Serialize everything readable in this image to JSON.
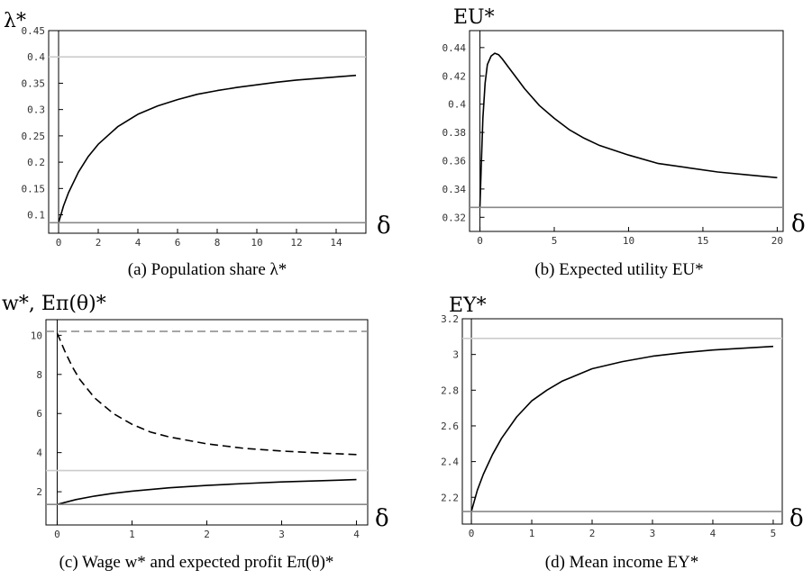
{
  "chart_data": [
    {
      "type": "line",
      "ylabel": "λ*",
      "xlabel": "δ",
      "caption": "(a) Population share λ*",
      "xlim": [
        -0.5,
        15.5
      ],
      "ylim": [
        0.065,
        0.45
      ],
      "xticks": [
        0,
        2,
        4,
        6,
        8,
        10,
        12,
        14
      ],
      "yticks": [
        0.1,
        0.15,
        0.2,
        0.25,
        0.3,
        0.35,
        0.4,
        0.45
      ],
      "ytick_labels": [
        "0.1",
        "0.15",
        "0.2",
        "0.25",
        "0.3",
        "0.35",
        "0.4",
        "0.45"
      ],
      "series": [
        {
          "style": "solid",
          "color": "#000000",
          "x": [
            0,
            0.25,
            0.5,
            1,
            1.5,
            2,
            3,
            4,
            5,
            6,
            7,
            8,
            9,
            10,
            11,
            12,
            13,
            14,
            15
          ],
          "y": [
            0.085,
            0.117,
            0.142,
            0.181,
            0.211,
            0.234,
            0.268,
            0.291,
            0.307,
            0.319,
            0.329,
            0.336,
            0.342,
            0.347,
            0.352,
            0.356,
            0.359,
            0.362,
            0.365
          ]
        },
        {
          "style": "solid",
          "color": "#cccccc",
          "x": [
            -0.5,
            15.5
          ],
          "y": [
            0.4,
            0.4
          ]
        },
        {
          "style": "solid",
          "color": "#888888",
          "x": [
            -0.5,
            15.5
          ],
          "y": [
            0.085,
            0.085
          ]
        }
      ]
    },
    {
      "type": "line",
      "ylabel": "EU*",
      "xlabel": "δ",
      "caption": "(b) Expected utility EU*",
      "xlim": [
        -0.7,
        20.4
      ],
      "ylim": [
        0.31,
        0.452
      ],
      "xticks": [
        0,
        5,
        10,
        15,
        20
      ],
      "yticks": [
        0.32,
        0.34,
        0.36,
        0.38,
        0.4,
        0.42,
        0.44
      ],
      "ytick_labels": [
        "0.32",
        "0.34",
        "0.36",
        "0.38",
        "0.4",
        "0.42",
        "0.44"
      ],
      "series": [
        {
          "style": "solid",
          "color": "#000000",
          "x": [
            0,
            0.1,
            0.2,
            0.35,
            0.5,
            0.75,
            1,
            1.25,
            1.5,
            2,
            2.5,
            3,
            4,
            5,
            6,
            7,
            8,
            10,
            12,
            14,
            16,
            18,
            20
          ],
          "y": [
            0.327,
            0.36,
            0.39,
            0.415,
            0.428,
            0.434,
            0.436,
            0.435,
            0.432,
            0.425,
            0.418,
            0.411,
            0.399,
            0.39,
            0.382,
            0.376,
            0.371,
            0.364,
            0.358,
            0.355,
            0.352,
            0.35,
            0.348
          ]
        },
        {
          "style": "solid",
          "color": "#888888",
          "x": [
            -0.7,
            20.4
          ],
          "y": [
            0.327,
            0.327
          ]
        }
      ]
    },
    {
      "type": "line",
      "ylabel": "w*, Eπ(θ)*",
      "xlabel": "δ",
      "caption": "(c) Wage w* and expected profit Eπ(θ)*",
      "xlim": [
        -0.15,
        4.15
      ],
      "ylim": [
        0.3,
        10.8
      ],
      "xticks": [
        0,
        1,
        2,
        3,
        4
      ],
      "yticks": [
        2,
        4,
        6,
        8,
        10
      ],
      "ytick_labels": [
        "2",
        "4",
        "6",
        "8",
        "10"
      ],
      "series": [
        {
          "style": "dashed",
          "color": "#000000",
          "x": [
            0,
            0.1,
            0.2,
            0.3,
            0.5,
            0.75,
            1,
            1.25,
            1.5,
            2,
            2.5,
            3,
            3.5,
            4
          ],
          "y": [
            10.1,
            9.2,
            8.4,
            7.75,
            6.8,
            6.0,
            5.45,
            5.05,
            4.8,
            4.45,
            4.22,
            4.08,
            3.98,
            3.9
          ]
        },
        {
          "style": "solid",
          "color": "#000000",
          "x": [
            0,
            0.25,
            0.5,
            0.75,
            1,
            1.5,
            2,
            2.5,
            3,
            3.5,
            4
          ],
          "y": [
            1.35,
            1.6,
            1.78,
            1.92,
            2.03,
            2.2,
            2.32,
            2.42,
            2.5,
            2.56,
            2.62
          ]
        },
        {
          "style": "dashed",
          "color": "#888888",
          "x": [
            -0.15,
            4.15
          ],
          "y": [
            10.2,
            10.2
          ]
        },
        {
          "style": "solid",
          "color": "#cccccc",
          "x": [
            -0.15,
            4.15
          ],
          "y": [
            3.08,
            3.08
          ]
        },
        {
          "style": "solid",
          "color": "#888888",
          "x": [
            -0.15,
            4.15
          ],
          "y": [
            1.35,
            1.35
          ]
        }
      ]
    },
    {
      "type": "line",
      "ylabel": "EY*",
      "xlabel": "δ",
      "caption": "(d) Mean income EY*",
      "xlim": [
        -0.15,
        5.15
      ],
      "ylim": [
        2.05,
        3.2
      ],
      "xticks": [
        0,
        1,
        2,
        3,
        4,
        5
      ],
      "yticks": [
        2.2,
        2.4,
        2.6,
        2.8,
        3,
        3.2
      ],
      "ytick_labels": [
        "2.2",
        "2.4",
        "2.6",
        "2.8",
        "3",
        "3.2"
      ],
      "series": [
        {
          "style": "solid",
          "color": "#000000",
          "x": [
            0,
            0.1,
            0.2,
            0.35,
            0.5,
            0.75,
            1,
            1.25,
            1.5,
            2,
            2.5,
            3,
            3.5,
            4,
            4.5,
            5
          ],
          "y": [
            2.12,
            2.24,
            2.33,
            2.44,
            2.53,
            2.65,
            2.74,
            2.8,
            2.85,
            2.92,
            2.96,
            2.99,
            3.01,
            3.025,
            3.035,
            3.045
          ]
        },
        {
          "style": "solid",
          "color": "#cccccc",
          "x": [
            -0.15,
            5.15
          ],
          "y": [
            3.09,
            3.09
          ]
        },
        {
          "style": "solid",
          "color": "#888888",
          "x": [
            -0.15,
            5.15
          ],
          "y": [
            2.12,
            2.12
          ]
        }
      ]
    }
  ]
}
